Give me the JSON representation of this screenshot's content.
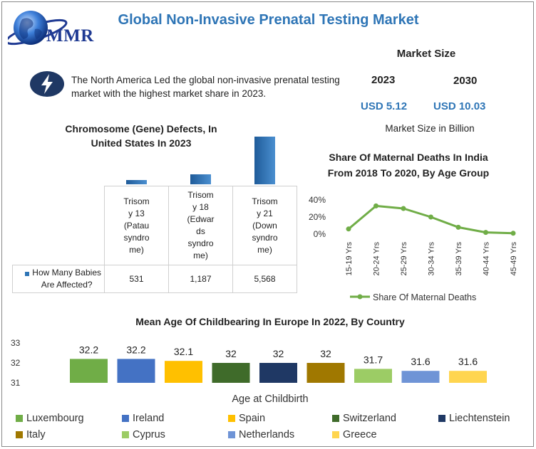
{
  "header": {
    "title": "Global Non-Invasive Prenatal Testing Market",
    "logo_text": "MMR"
  },
  "info": {
    "text": "The North America Led the global non-invasive prenatal testing market with the highest market share in 2023."
  },
  "market_size": {
    "title": "Market Size",
    "year_start": "2023",
    "year_end": "2030",
    "value_start": "USD 5.12",
    "value_end": "USD 10.03",
    "note": "Market Size in Billion"
  },
  "colors": {
    "accent": "#2e75b6",
    "bar_blue": "#2e75b6",
    "line_green": "#70ad47"
  },
  "chart_data": [
    {
      "type": "bar",
      "title": "Chromosome (Gene) Defects, In United States In 2023",
      "categories": [
        "Trisomy 13 (Patau syndrome)",
        "Trisomy 18 (Edwards syndrome)",
        "Trisomy 21 (Down syndrome)"
      ],
      "category_lines": [
        [
          "Trisom",
          "y 13",
          "(Patau",
          "syndro",
          "me)"
        ],
        [
          "Trisom",
          "y 18",
          "(Edwar",
          "ds",
          "syndro",
          "me)"
        ],
        [
          "Trisom",
          "y 21",
          "(Down",
          "syndro",
          "me)"
        ]
      ],
      "series": [
        {
          "name": "How Many Babies Are Affected?",
          "values": [
            531,
            1187,
            5568
          ],
          "value_labels": [
            "531",
            "1,187",
            "5,568"
          ]
        }
      ],
      "legend_lines": [
        "How Many Babies",
        "Are Affected?"
      ],
      "ylim": [
        0,
        5568
      ]
    },
    {
      "type": "line",
      "title": "Share Of Maternal Deaths In India From 2018 To 2020, By Age Group",
      "categories": [
        "15-19 Yrs",
        "20-24 Yrs",
        "25-29 Yrs",
        "30-34 Yrs",
        "35-39 Yrs",
        "40-44 Yrs",
        "45-49 Yrs"
      ],
      "series": [
        {
          "name": "Share Of Maternal Deaths",
          "values": [
            6,
            33,
            30,
            20,
            8,
            2,
            1
          ]
        }
      ],
      "yticks": [
        "40%",
        "20%",
        "0%"
      ],
      "ylim": [
        0,
        40
      ],
      "legend": "bottom"
    },
    {
      "type": "bar",
      "title": "Mean Age Of Childbearing In Europe In 2022, By Country",
      "xlabel": "Age at Childbirth",
      "categories": [
        "Luxembourg",
        "Ireland",
        "Spain",
        "Switzerland",
        "Liechtenstein",
        "Italy",
        "Cyprus",
        "Netherlands",
        "Greece"
      ],
      "values": [
        32.2,
        32.2,
        32.1,
        32,
        32,
        32,
        31.7,
        31.6,
        31.6
      ],
      "value_labels": [
        "32.2",
        "32.2",
        "32.1",
        "32",
        "32",
        "32",
        "31.7",
        "31.6",
        "31.6"
      ],
      "colors": [
        "#70ad47",
        "#4472c4",
        "#ffc000",
        "#3f6b2a",
        "#1f3864",
        "#a07800",
        "#9ccc65",
        "#6f94d6",
        "#ffd54f"
      ],
      "yticks": [
        "33",
        "32",
        "31"
      ],
      "ylim": [
        31,
        33
      ],
      "legend": "bottom"
    }
  ]
}
